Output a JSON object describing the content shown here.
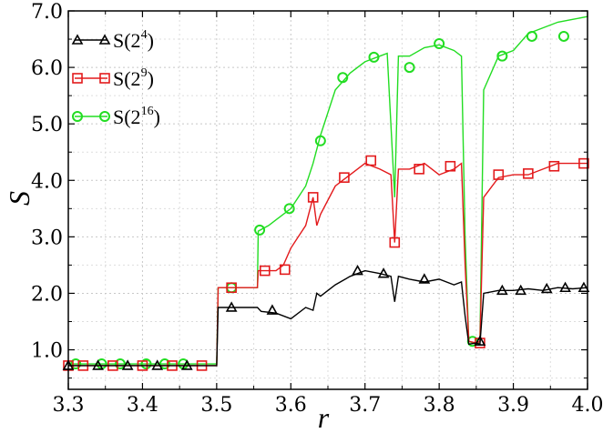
{
  "chart_data": {
    "type": "line",
    "title": "",
    "xlabel": "r",
    "ylabel": "S",
    "xlim": [
      3.3,
      4.0
    ],
    "ylim": [
      0.3,
      7.0
    ],
    "x_ticks": [
      "3.3",
      "3.4",
      "3.5",
      "3.6",
      "3.7",
      "3.8",
      "3.9",
      "4.0"
    ],
    "y_ticks": [
      "1.0",
      "2.0",
      "3.0",
      "4.0",
      "5.0",
      "6.0",
      "7.0"
    ],
    "grid": true,
    "legend_position": "top-left",
    "series": [
      {
        "name": "S(2^4)",
        "legend_base": "S(2",
        "legend_exp": "4",
        "legend_close": ")",
        "color": "#000000",
        "marker": "triangle",
        "x": [
          3.3,
          3.32,
          3.34,
          3.36,
          3.38,
          3.4,
          3.42,
          3.44,
          3.46,
          3.48,
          3.5,
          3.502,
          3.52,
          3.54,
          3.555,
          3.56,
          3.58,
          3.6,
          3.62,
          3.63,
          3.635,
          3.64,
          3.66,
          3.68,
          3.7,
          3.72,
          3.735,
          3.74,
          3.745,
          3.76,
          3.78,
          3.8,
          3.82,
          3.83,
          3.835,
          3.84,
          3.85,
          3.855,
          3.86,
          3.88,
          3.9,
          3.92,
          3.94,
          3.96,
          3.98,
          4.0
        ],
        "y": [
          0.72,
          0.72,
          0.72,
          0.72,
          0.72,
          0.72,
          0.72,
          0.72,
          0.72,
          0.72,
          0.72,
          1.75,
          1.75,
          1.75,
          1.75,
          1.68,
          1.65,
          1.55,
          1.75,
          1.7,
          2.0,
          1.95,
          2.15,
          2.3,
          2.4,
          2.35,
          2.3,
          1.85,
          2.3,
          2.25,
          2.2,
          2.25,
          2.15,
          2.2,
          1.6,
          1.1,
          1.12,
          1.1,
          2.0,
          2.05,
          2.05,
          2.08,
          2.05,
          2.1,
          2.08,
          2.1
        ],
        "markers_x": [
          3.3,
          3.34,
          3.38,
          3.42,
          3.46,
          3.52,
          3.575,
          3.69,
          3.725,
          3.78,
          3.855,
          3.885,
          3.91,
          3.945,
          3.97,
          3.995
        ],
        "markers_y": [
          0.72,
          0.72,
          0.72,
          0.72,
          0.72,
          1.75,
          1.7,
          2.4,
          2.35,
          2.25,
          1.15,
          2.05,
          2.05,
          2.08,
          2.1,
          2.1
        ]
      },
      {
        "name": "S(2^9)",
        "legend_base": "S(2",
        "legend_exp": "9",
        "legend_close": ")",
        "color": "#e31a1c",
        "marker": "square",
        "x": [
          3.3,
          3.32,
          3.34,
          3.36,
          3.38,
          3.4,
          3.42,
          3.44,
          3.46,
          3.48,
          3.5,
          3.502,
          3.53,
          3.555,
          3.556,
          3.58,
          3.59,
          3.6,
          3.61,
          3.62,
          3.63,
          3.635,
          3.64,
          3.66,
          3.68,
          3.7,
          3.72,
          3.735,
          3.74,
          3.745,
          3.76,
          3.78,
          3.8,
          3.82,
          3.83,
          3.835,
          3.84,
          3.85,
          3.855,
          3.86,
          3.88,
          3.9,
          3.92,
          3.94,
          3.96,
          3.98,
          4.0
        ],
        "y": [
          0.72,
          0.72,
          0.72,
          0.72,
          0.72,
          0.72,
          0.72,
          0.72,
          0.72,
          0.72,
          0.72,
          2.1,
          2.1,
          2.1,
          2.4,
          2.4,
          2.5,
          2.8,
          3.0,
          3.2,
          3.7,
          3.2,
          3.4,
          3.9,
          4.1,
          4.3,
          4.2,
          4.1,
          2.9,
          4.2,
          4.2,
          4.3,
          4.1,
          4.2,
          4.3,
          2.5,
          1.15,
          1.12,
          1.15,
          3.7,
          4.05,
          4.1,
          4.1,
          4.2,
          4.3,
          4.3,
          4.3
        ],
        "markers_x": [
          3.3,
          3.32,
          3.36,
          3.4,
          3.44,
          3.48,
          3.52,
          3.565,
          3.592,
          3.63,
          3.672,
          3.708,
          3.74,
          3.773,
          3.815,
          3.855,
          3.88,
          3.92,
          3.955,
          3.995
        ],
        "markers_y": [
          0.72,
          0.72,
          0.72,
          0.72,
          0.72,
          0.72,
          2.1,
          2.4,
          2.42,
          3.7,
          4.05,
          4.35,
          2.9,
          4.2,
          4.25,
          1.12,
          4.1,
          4.12,
          4.25,
          4.3
        ]
      },
      {
        "name": "S(2^16)",
        "legend_base": "S(2",
        "legend_exp": "16",
        "legend_close": ")",
        "color": "#22dd22",
        "marker": "circle",
        "x": [
          3.3,
          3.32,
          3.34,
          3.36,
          3.38,
          3.4,
          3.42,
          3.44,
          3.46,
          3.48,
          3.5,
          3.502,
          3.53,
          3.555,
          3.556,
          3.57,
          3.58,
          3.6,
          3.62,
          3.63,
          3.64,
          3.66,
          3.68,
          3.7,
          3.72,
          3.73,
          3.74,
          3.745,
          3.76,
          3.78,
          3.8,
          3.82,
          3.83,
          3.835,
          3.84,
          3.85,
          3.855,
          3.86,
          3.88,
          3.9,
          3.92,
          3.94,
          3.96,
          3.98,
          4.0
        ],
        "y": [
          0.75,
          0.75,
          0.75,
          0.75,
          0.75,
          0.75,
          0.75,
          0.75,
          0.75,
          0.75,
          0.75,
          2.1,
          2.1,
          2.1,
          3.1,
          3.2,
          3.3,
          3.5,
          3.9,
          4.3,
          4.8,
          5.6,
          5.9,
          6.1,
          6.2,
          6.25,
          3.7,
          6.2,
          6.2,
          6.35,
          6.4,
          6.3,
          6.2,
          3.0,
          1.15,
          1.1,
          1.15,
          5.6,
          6.2,
          6.3,
          6.6,
          6.7,
          6.8,
          6.85,
          6.9
        ],
        "markers_x": [
          3.31,
          3.345,
          3.37,
          3.405,
          3.43,
          3.455,
          3.52,
          3.558,
          3.598,
          3.64,
          3.67,
          3.712,
          3.76,
          3.8,
          3.845,
          3.885,
          3.925,
          3.968
        ],
        "markers_y": [
          0.75,
          0.75,
          0.75,
          0.75,
          0.75,
          0.75,
          2.1,
          3.12,
          3.5,
          4.7,
          5.82,
          6.18,
          6.0,
          6.42,
          1.15,
          6.2,
          6.55,
          6.55
        ]
      }
    ]
  }
}
